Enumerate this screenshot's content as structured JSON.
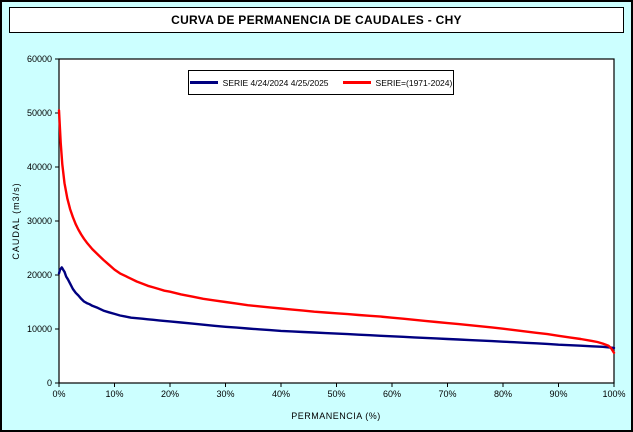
{
  "colors": {
    "page_background": "#CCFFFF",
    "plot_background": "#FFFFFF",
    "axis": "#000000",
    "navy_series": "#000080",
    "red_series": "#FF0000"
  },
  "chart_data": {
    "type": "line",
    "title": "CURVA DE PERMANENCIA DE CAUDALES - CHY",
    "xlabel": "PERMANENCIA (%)",
    "ylabel": "CAUDAL (m3/s)",
    "xlim": [
      0,
      100
    ],
    "ylim": [
      0,
      60000
    ],
    "grid": false,
    "legend_position": "top-center-inside",
    "x_ticks": [
      0,
      10,
      20,
      30,
      40,
      50,
      60,
      70,
      80,
      90,
      100
    ],
    "x_tick_labels": [
      "0%",
      "10%",
      "20%",
      "30%",
      "40%",
      "50%",
      "60%",
      "70%",
      "80%",
      "90%",
      "100%"
    ],
    "y_ticks": [
      0,
      10000,
      20000,
      30000,
      40000,
      50000,
      60000
    ],
    "y_tick_labels": [
      "0",
      "10000",
      "20000",
      "30000",
      "40000",
      "50000",
      "60000"
    ],
    "series": [
      {
        "name": "SERIE 4/24/2024 4/25/2025",
        "color": "#000080",
        "x": [
          0,
          0.2,
          0.5,
          0.8,
          1,
          1.3,
          1.6,
          2,
          2.5,
          3,
          3.5,
          4,
          4.5,
          5,
          5.5,
          6,
          7,
          8,
          9,
          10,
          11,
          12,
          13,
          14,
          15,
          16,
          17,
          18,
          19,
          20,
          22,
          24,
          26,
          28,
          30,
          32,
          34,
          36,
          38,
          40,
          42,
          44,
          46,
          48,
          50,
          52,
          54,
          56,
          58,
          60,
          62,
          64,
          66,
          68,
          70,
          72,
          74,
          76,
          78,
          80,
          82,
          84,
          86,
          88,
          90,
          92,
          94,
          96,
          98,
          100
        ],
        "y": [
          20300,
          21000,
          21400,
          20900,
          20600,
          19700,
          19200,
          18400,
          17400,
          16700,
          16200,
          15600,
          15100,
          14800,
          14600,
          14300,
          13900,
          13400,
          13100,
          12800,
          12500,
          12300,
          12100,
          12000,
          11900,
          11800,
          11700,
          11600,
          11500,
          11400,
          11200,
          11000,
          10800,
          10600,
          10400,
          10250,
          10100,
          9950,
          9800,
          9650,
          9550,
          9450,
          9350,
          9250,
          9150,
          9050,
          8950,
          8850,
          8750,
          8650,
          8550,
          8450,
          8350,
          8250,
          8150,
          8050,
          7950,
          7850,
          7750,
          7650,
          7550,
          7450,
          7350,
          7250,
          7100,
          7000,
          6900,
          6800,
          6700,
          6500
        ]
      },
      {
        "name": "SERIE=(1971-2024)",
        "color": "#FF0000",
        "x": [
          0,
          0.3,
          0.6,
          1,
          1.5,
          2,
          2.5,
          3,
          3.5,
          4,
          4.5,
          5,
          6,
          7,
          8,
          9,
          10,
          11,
          12,
          13,
          14,
          15,
          16,
          17,
          18,
          19,
          20,
          22,
          24,
          26,
          28,
          30,
          32,
          34,
          36,
          38,
          40,
          42,
          44,
          46,
          48,
          50,
          52,
          54,
          56,
          58,
          60,
          62,
          64,
          66,
          68,
          70,
          72,
          74,
          76,
          78,
          80,
          82,
          84,
          86,
          88,
          90,
          92,
          94,
          96,
          97,
          98,
          99,
          99.5,
          100
        ],
        "y": [
          50500,
          44500,
          40500,
          37000,
          34200,
          32200,
          30700,
          29400,
          28400,
          27500,
          26700,
          26000,
          24800,
          23800,
          22800,
          21900,
          21000,
          20300,
          19800,
          19300,
          18800,
          18400,
          18000,
          17700,
          17400,
          17100,
          16900,
          16400,
          16000,
          15600,
          15300,
          15000,
          14700,
          14400,
          14200,
          14000,
          13800,
          13600,
          13400,
          13200,
          13050,
          12900,
          12750,
          12600,
          12450,
          12300,
          12100,
          11900,
          11700,
          11500,
          11300,
          11100,
          10900,
          10700,
          10500,
          10300,
          10050,
          9800,
          9550,
          9300,
          9050,
          8750,
          8450,
          8150,
          7800,
          7600,
          7300,
          6900,
          6400,
          5600
        ]
      }
    ]
  }
}
